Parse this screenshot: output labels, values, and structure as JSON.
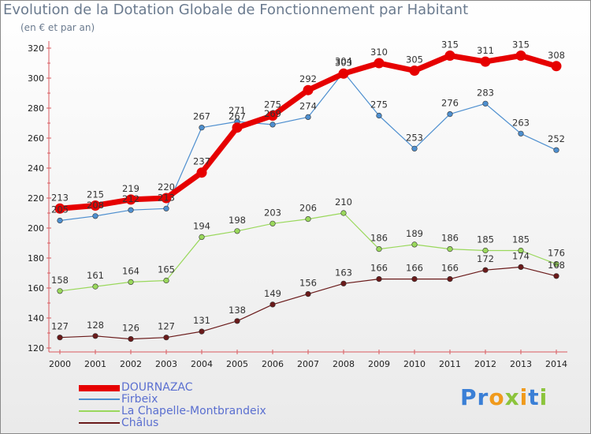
{
  "header": {
    "title": "Evolution de la Dotation Globale de Fonctionnement par Habitant",
    "subtitle": "(en € et par an)"
  },
  "logo": {
    "text": "Proxiti"
  },
  "chart_data": {
    "type": "line",
    "x": [
      "2000",
      "2001",
      "2002",
      "2003",
      "2004",
      "2005",
      "2006",
      "2007",
      "2008",
      "2009",
      "2010",
      "2011",
      "2012",
      "2013",
      "2014"
    ],
    "ylim": [
      120,
      320
    ],
    "yticks": [
      120,
      140,
      160,
      180,
      200,
      220,
      240,
      260,
      280,
      300,
      320
    ],
    "grid": false,
    "legend_position": "bottom-left",
    "series": [
      {
        "name": "DOURNAZAC",
        "color": "#e60000",
        "values": [
          213,
          215,
          219,
          220,
          237,
          267,
          275,
          292,
          303,
          310,
          305,
          315,
          311,
          315,
          308
        ]
      },
      {
        "name": "Firbeix",
        "color": "#4e8fcf",
        "values": [
          205,
          208,
          212,
          213,
          267,
          271,
          269,
          274,
          304,
          275,
          253,
          276,
          283,
          263,
          252
        ]
      },
      {
        "name": "La Chapelle-Montbrandeix",
        "color": "#9ad85c",
        "values": [
          158,
          161,
          164,
          165,
          194,
          198,
          203,
          206,
          210,
          186,
          189,
          186,
          185,
          185,
          176
        ]
      },
      {
        "name": "Châlus",
        "color": "#6a1a1a",
        "values": [
          127,
          128,
          126,
          127,
          131,
          138,
          149,
          156,
          163,
          166,
          166,
          166,
          172,
          174,
          168
        ]
      }
    ]
  }
}
